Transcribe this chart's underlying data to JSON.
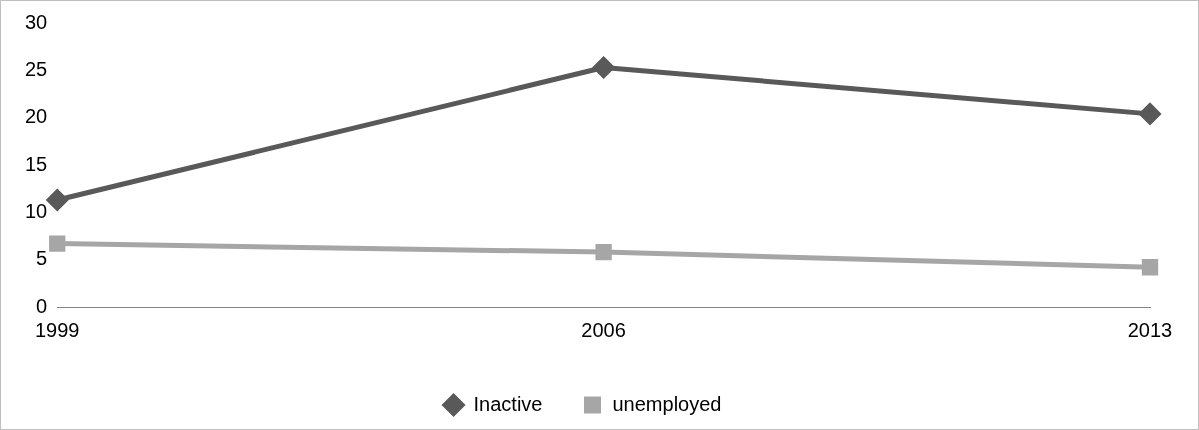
{
  "chart_data": {
    "type": "line",
    "categories": [
      "1999",
      "2006",
      "2013"
    ],
    "series": [
      {
        "name": "Inactive",
        "color": "#595959",
        "marker": "diamond",
        "values": [
          11.3,
          25.3,
          20.4
        ]
      },
      {
        "name": "unemployed",
        "color": "#a6a6a6",
        "marker": "square",
        "values": [
          6.7,
          5.8,
          4.2
        ]
      }
    ],
    "ylim": [
      0,
      30
    ],
    "yticks": [
      0,
      5,
      10,
      15,
      20,
      25,
      30
    ],
    "grid": false,
    "legend": "bottom",
    "line_style": "solid"
  }
}
